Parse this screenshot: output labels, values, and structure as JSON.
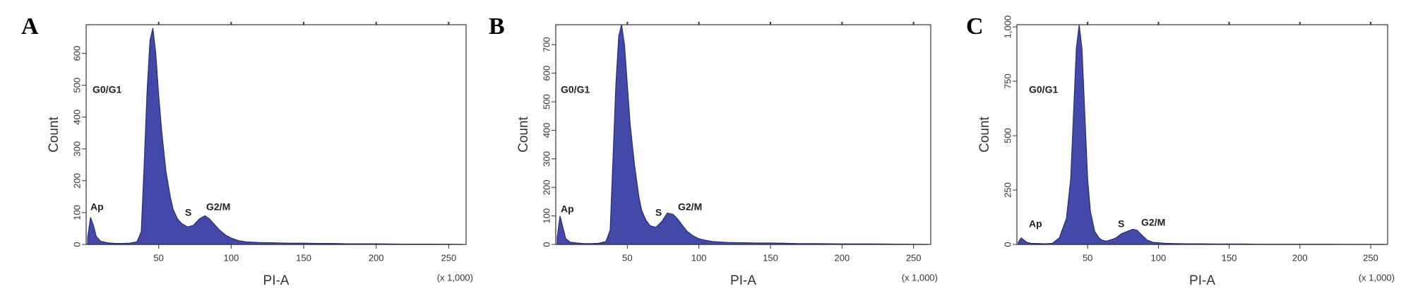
{
  "chart_data": [
    {
      "type": "area",
      "panel_label": "A",
      "ylabel": "Count",
      "xlabel": "PI-A",
      "x_unit_note": "(x 1,000)",
      "annotations": [
        "Ap",
        "G0/G1",
        "S",
        "G2/M"
      ],
      "color": "#4249a8",
      "grid": false,
      "xlim": [
        0,
        262
      ],
      "xticks": [
        50,
        100,
        150,
        200,
        250
      ],
      "ylim": [
        0,
        690
      ],
      "yticks": [
        0,
        100,
        200,
        300,
        400,
        500,
        600
      ],
      "x": [
        1,
        3,
        5,
        7,
        10,
        15,
        20,
        25,
        30,
        35,
        38,
        40,
        42,
        44,
        46,
        48,
        50,
        52,
        55,
        58,
        60,
        63,
        66,
        70,
        74,
        78,
        82,
        85,
        88,
        92,
        96,
        100,
        105,
        110,
        120,
        130,
        140,
        150,
        160,
        170,
        180,
        200,
        220,
        240,
        260
      ],
      "values": [
        20,
        85,
        60,
        25,
        10,
        5,
        3,
        3,
        4,
        8,
        40,
        250,
        480,
        640,
        680,
        600,
        470,
        360,
        230,
        150,
        110,
        80,
        65,
        55,
        60,
        80,
        90,
        80,
        65,
        45,
        30,
        20,
        12,
        8,
        6,
        5,
        4,
        4,
        3,
        3,
        2,
        2,
        1,
        1,
        0
      ]
    },
    {
      "type": "area",
      "panel_label": "B",
      "ylabel": "Count",
      "xlabel": "PI-A",
      "x_unit_note": "(x 1,000)",
      "annotations": [
        "Ap",
        "G0/G1",
        "S",
        "G2/M"
      ],
      "color": "#4249a8",
      "grid": false,
      "xlim": [
        0,
        262
      ],
      "xticks": [
        50,
        100,
        150,
        200,
        250
      ],
      "ylim": [
        0,
        770
      ],
      "yticks": [
        0,
        100,
        200,
        300,
        400,
        500,
        600,
        700
      ],
      "x": [
        1,
        3,
        5,
        7,
        10,
        15,
        20,
        25,
        30,
        35,
        38,
        40,
        42,
        44,
        46,
        48,
        50,
        52,
        55,
        58,
        60,
        63,
        66,
        70,
        74,
        78,
        82,
        85,
        88,
        92,
        96,
        100,
        105,
        110,
        120,
        130,
        140,
        150,
        160,
        170,
        180,
        200,
        220,
        240,
        260
      ],
      "values": [
        25,
        100,
        60,
        20,
        8,
        5,
        3,
        3,
        4,
        10,
        50,
        300,
        560,
        730,
        770,
        700,
        560,
        420,
        280,
        170,
        120,
        85,
        65,
        60,
        80,
        110,
        105,
        90,
        70,
        45,
        30,
        20,
        14,
        10,
        7,
        6,
        5,
        5,
        4,
        3,
        3,
        2,
        2,
        1,
        0
      ]
    },
    {
      "type": "area",
      "panel_label": "C",
      "ylabel": "Count",
      "xlabel": "PI-A",
      "x_unit_note": "(x 1,000)",
      "annotations": [
        "Ap",
        "G0/G1",
        "S",
        "G2/M"
      ],
      "color": "#4249a8",
      "grid": false,
      "xlim": [
        0,
        262
      ],
      "xticks": [
        50,
        100,
        150,
        200,
        250
      ],
      "ylim": [
        0,
        1010
      ],
      "yticks": [
        0,
        250,
        500,
        750,
        {
          "value": 1000,
          "label": "1,000"
        }
      ],
      "x": [
        1,
        3,
        5,
        7,
        10,
        15,
        20,
        25,
        30,
        35,
        38,
        40,
        42,
        44,
        46,
        48,
        50,
        52,
        55,
        58,
        60,
        63,
        66,
        70,
        74,
        78,
        82,
        85,
        88,
        92,
        96,
        100,
        105,
        110,
        120,
        130,
        140,
        150,
        160,
        170,
        180,
        200,
        220,
        240,
        260
      ],
      "values": [
        10,
        30,
        20,
        10,
        5,
        4,
        3,
        5,
        30,
        120,
        300,
        600,
        900,
        1010,
        900,
        600,
        300,
        150,
        60,
        30,
        20,
        15,
        20,
        30,
        50,
        60,
        70,
        65,
        45,
        20,
        10,
        8,
        5,
        4,
        3,
        3,
        2,
        2,
        2,
        1,
        1,
        1,
        1,
        0,
        0
      ]
    }
  ]
}
